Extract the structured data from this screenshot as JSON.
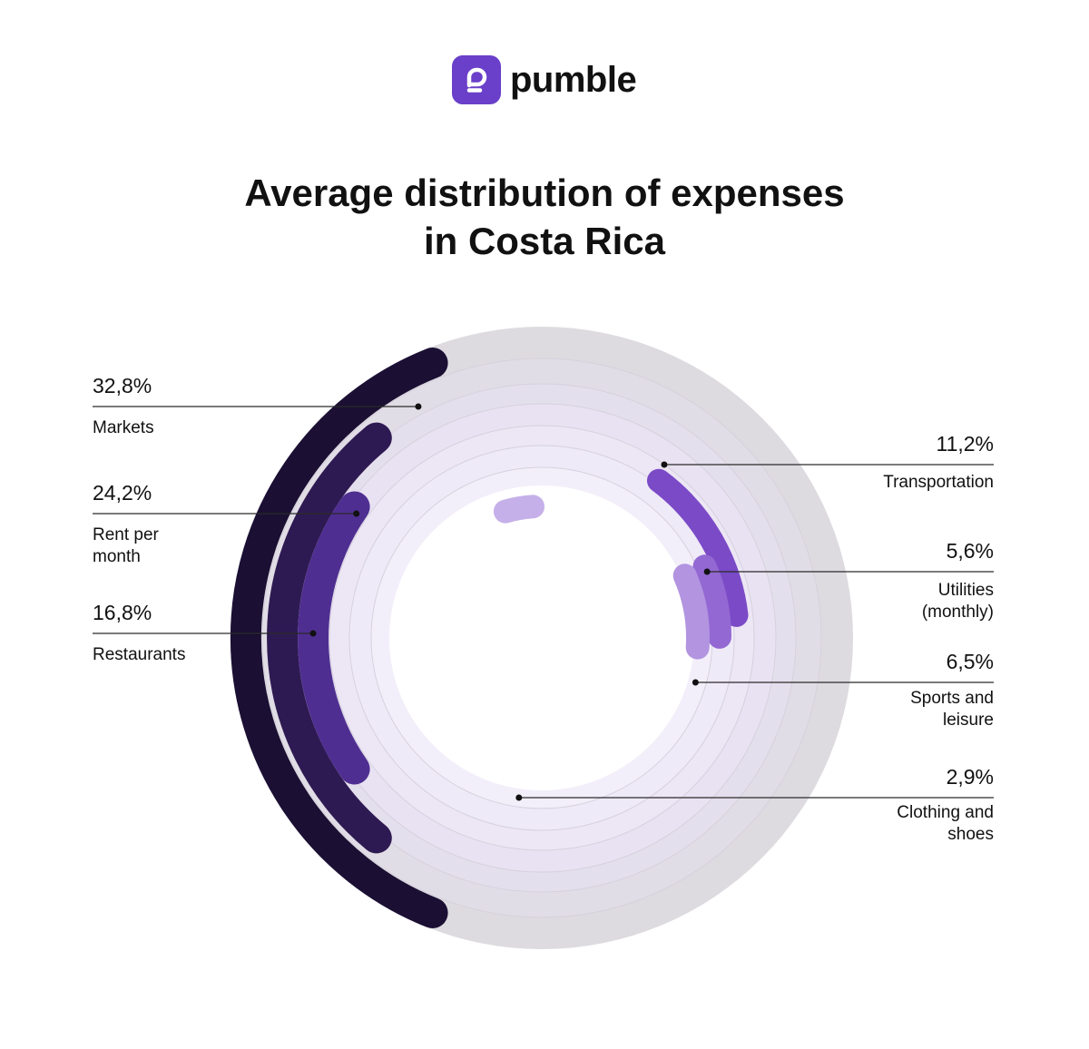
{
  "brand": {
    "name": "pumble",
    "color": "#6a3fc9"
  },
  "title_lines": [
    "Average distribution of expenses",
    "in Costa Rica"
  ],
  "chart_data": {
    "type": "radial-bar",
    "title": "Average distribution of expenses in Costa Rica",
    "unit": "%",
    "categories": [
      "Markets",
      "Rent per month",
      "Restaurants",
      "Transportation",
      "Utilities (monthly)",
      "Sports and leisure",
      "Clothing and shoes"
    ],
    "values": [
      32.8,
      24.2,
      16.8,
      11.2,
      5.6,
      6.5,
      2.9
    ],
    "series": [
      {
        "name": "Markets",
        "value": 32.8,
        "value_label": "32,8%",
        "name_lines": [
          "Markets"
        ],
        "color": "#1b0f33"
      },
      {
        "name": "Rent per month",
        "value": 24.2,
        "value_label": "24,2%",
        "name_lines": [
          "Rent per",
          "month"
        ],
        "color": "#2e1a52"
      },
      {
        "name": "Restaurants",
        "value": 16.8,
        "value_label": "16,8%",
        "name_lines": [
          "Restaurants"
        ],
        "color": "#4f2e91"
      },
      {
        "name": "Transportation",
        "value": 11.2,
        "value_label": "11,2%",
        "name_lines": [
          "Transportation"
        ],
        "color": "#7b4ac7"
      },
      {
        "name": "Utilities (monthly)",
        "value": 5.6,
        "value_label": "5,6%",
        "name_lines": [
          "Utilities",
          "(monthly)"
        ],
        "color": "#9368d3"
      },
      {
        "name": "Sports and leisure",
        "value": 6.5,
        "value_label": "6,5%",
        "name_lines": [
          "Sports and",
          "leisure"
        ],
        "color": "#b294e0"
      },
      {
        "name": "Clothing and shoes",
        "value": 2.9,
        "value_label": "2,9%",
        "name_lines": [
          "Clothing and",
          "shoes"
        ],
        "color": "#c6b0e9"
      }
    ]
  }
}
